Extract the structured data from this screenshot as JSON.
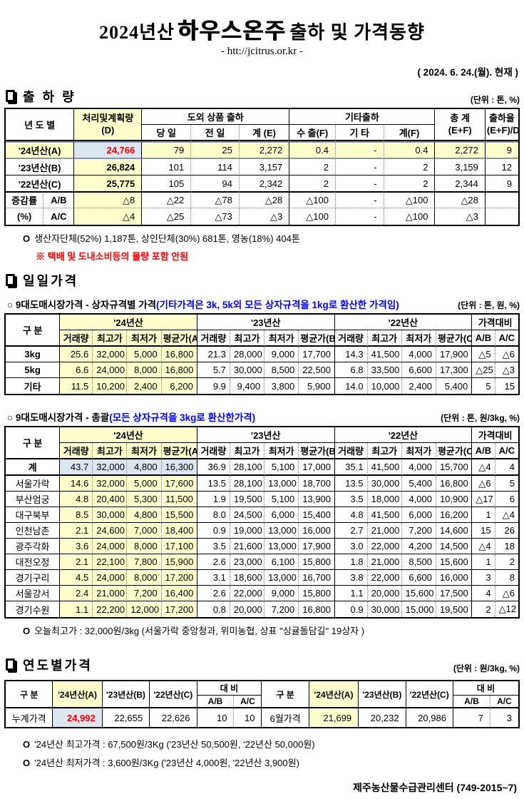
{
  "header": {
    "title_year": "2024년산",
    "title_main": "하우스온주",
    "title_tail": "출하 및 가격동향",
    "url": "- htt://jcitrus.or.kr -",
    "date": "( 2024.  6. 24.(월). 현재 )"
  },
  "colors": {
    "highlight_yellow": "#FFFFCC",
    "highlight_blue": "#DCE6F1",
    "red_value": "#FF0000",
    "blue_note": "#0000FF",
    "row_frame_blue": "#8496B0"
  },
  "shipment": {
    "section_title": "출 하 량",
    "unit": "(단위 : 톤, %)",
    "table": {
      "h_year": "년 도 별",
      "h_d1": "처리및계획량",
      "h_d2": "(D)",
      "h_out_group": "도외 상품 출하",
      "h_today": "당 일",
      "h_prev": "전 일",
      "h_sum_e": "계 (E)",
      "h_etc_group": "기타출하",
      "h_export": "수 출(F)",
      "h_etc": "기 타",
      "h_sum_f": "계(F)",
      "h_total1": "총  계",
      "h_total2": "(E+F)",
      "h_rate1": "출하율",
      "h_rate2": "(E+F)/D",
      "change_label1": "증감률",
      "change_label2": "(%)",
      "rows": [
        {
          "label": "'24년산(A)",
          "cells": [
            "24,766",
            "79",
            "25",
            "2,272",
            "0.4",
            "-",
            "0.4",
            "2,272",
            "9"
          ]
        },
        {
          "label": "'23년산(B)",
          "cells": [
            "26,824",
            "101",
            "114",
            "3,157",
            "2",
            "-",
            "2",
            "3,159",
            "12"
          ]
        },
        {
          "label": "'22년산(C)",
          "cells": [
            "25,775",
            "105",
            "94",
            "2,342",
            "2",
            "-",
            "2",
            "2,344",
            "9"
          ]
        }
      ],
      "change_rows": [
        {
          "label": "A/B",
          "cells": [
            "△8",
            "△22",
            "△78",
            "△28",
            "△100",
            "-",
            "△100",
            "△28",
            ""
          ]
        },
        {
          "label": "A/C",
          "cells": [
            "△4",
            "△25",
            "△73",
            "△3",
            "△100",
            "-",
            "△100",
            "△3",
            ""
          ]
        }
      ]
    },
    "note1_bullet": "O",
    "note1": "생산자단체(52%) 1,187톤, 상인단체(30%) 681톤, 영농(18%) 404톤",
    "note2": "※ 택배 및 도내소비등의 물량 포함 안됨"
  },
  "daily": {
    "section_title": "일일가격",
    "box_title": "○ 9대도매시장가격 - 상자규격별 가격",
    "box_title_note": "(기타가격은 3k, 5k외 모든 상자규격을 1kg로 환산한 가격임)",
    "box_unit": "(단위 : 톤,  원, %)",
    "summary_title": "○ 9대도매시장가격 - 총괄",
    "summary_title_note": "(모든 상자규격을 3kg로 환산한가격)",
    "summary_unit": "(단위 : 톤, 원/3kg, %)",
    "col_head": {
      "gubun": "구  분",
      "y24": "'24년산",
      "y23": "'23년산",
      "y22": "'22년산",
      "cmp": "가격대비",
      "vol": "거래량",
      "high": "최고가",
      "low": "최저가",
      "avgA": "평균가(A)",
      "avgB": "평균가(B)",
      "avgC": "평균가(C)",
      "ab": "A/B",
      "ac": "A/C"
    },
    "box_rows": [
      [
        "3kg",
        "25.6",
        "32,000",
        "5,000",
        "16,800",
        "21.3",
        "28,000",
        "9,000",
        "17,700",
        "14.3",
        "41,500",
        "4,000",
        "17,900",
        "△5",
        "△6"
      ],
      [
        "5kg",
        "6.6",
        "24,000",
        "8,000",
        "16,800",
        "5.7",
        "30,000",
        "8,500",
        "22,500",
        "6.8",
        "33,500",
        "6,600",
        "17,300",
        "△25",
        "△3"
      ],
      [
        "기타",
        "11.5",
        "10,200",
        "2,400",
        "6,200",
        "9.9",
        "9,400",
        "3,800",
        "5,900",
        "14.0",
        "10,000",
        "2,400",
        "5,400",
        "5",
        "15"
      ]
    ],
    "summary_rows": [
      {
        "cls": "total",
        "c": [
          "계",
          "43.7",
          "32,000",
          "4,800",
          "16,300",
          "36.9",
          "28,100",
          "5,100",
          "17,000",
          "35.1",
          "41,500",
          "4,000",
          "15,700",
          "△4",
          "4"
        ]
      },
      {
        "c": [
          "서울가락",
          "14.6",
          "32,000",
          "5,000",
          "17,600",
          "13.5",
          "28,100",
          "13,000",
          "18,700",
          "13.5",
          "30,000",
          "5,400",
          "16,800",
          "△6",
          "5"
        ]
      },
      {
        "c": [
          "부산엄궁",
          "4.8",
          "20,400",
          "5,300",
          "11,500",
          "1.9",
          "19,500",
          "5,100",
          "13,900",
          "3.5",
          "18,000",
          "4,000",
          "10,900",
          "△17",
          "6"
        ]
      },
      {
        "c": [
          "대구북부",
          "8.5",
          "30,000",
          "4,800",
          "15,500",
          "8.0",
          "24,500",
          "6,000",
          "15,400",
          "4.8",
          "41,500",
          "6,000",
          "16,200",
          "1",
          "△4"
        ]
      },
      {
        "c": [
          "인천남촌",
          "2.1",
          "24,600",
          "7,000",
          "18,400",
          "0.9",
          "19,000",
          "13,000",
          "16,000",
          "2.7",
          "21,000",
          "7,200",
          "14,600",
          "15",
          "26"
        ]
      },
      {
        "c": [
          "광주각화",
          "3.6",
          "24,000",
          "8,000",
          "17,100",
          "3.5",
          "21,600",
          "13,000",
          "17,900",
          "3.0",
          "22,000",
          "4,200",
          "14,500",
          "△4",
          "18"
        ]
      },
      {
        "c": [
          "대전오정",
          "2.1",
          "22,100",
          "7,800",
          "15,900",
          "2.6",
          "23,000",
          "6,100",
          "15,800",
          "1.8",
          "21,000",
          "8,500",
          "15,600",
          "1",
          "2"
        ]
      },
      {
        "c": [
          "경기구리",
          "4.5",
          "24,000",
          "8,000",
          "17,200",
          "3.1",
          "18,600",
          "13,000",
          "16,700",
          "3.8",
          "22,000",
          "6,600",
          "16,000",
          "3",
          "8"
        ]
      },
      {
        "c": [
          "서울강서",
          "2.4",
          "21,000",
          "7,200",
          "16,400",
          "2.6",
          "22,000",
          "9,000",
          "15,800",
          "1.1",
          "20,000",
          "15,600",
          "17,500",
          "4",
          "△6"
        ]
      },
      {
        "c": [
          "경기수원",
          "1.1",
          "22,200",
          "12,000",
          "17,200",
          "0.8",
          "20,000",
          "7,200",
          "16,800",
          "0.9",
          "30,000",
          "15,000",
          "19,500",
          "2",
          "△12"
        ]
      }
    ],
    "today_high_bullet": "O",
    "today_high_note": "오늘최고가 : 32,000원/3kg (서울가락  중앙청과,  위미농협,  상표 \"싱귤돌담길\"  19상자 )"
  },
  "yearly": {
    "section_title": "연도별가격",
    "unit": "(단위 : 원/3kg, %)",
    "table": {
      "h_gubun": "구   분",
      "h_a": "'24년산(A)",
      "h_b": "'23년산(B)",
      "h_c": "'22년산(C)",
      "h_cmp": "대    비",
      "h_ab": "A/B",
      "h_ac": "A/C",
      "left_label": "누계가격",
      "left_a": "24,992",
      "left_b": "22,655",
      "left_c": "22,626",
      "left_ab": "10",
      "left_ac": "10",
      "right_label": "6월가격",
      "right_a": "21,699",
      "right_b": "20,232",
      "right_c": "20,986",
      "right_ab": "7",
      "right_ac": "3"
    },
    "note_high_bullet": "O",
    "note_high": "'24년산 최고가격 : 67,500원/3Kg ('23년산 50,500원, '22년산 50,000원)",
    "note_low_bullet": "O",
    "note_low": "'24년산 최저가격 :   3,600원/3Kg ('23년산   4,000원, '22년산  3,900원)",
    "footer": "제주농산물수급관리센터 (749-2015~7)"
  }
}
